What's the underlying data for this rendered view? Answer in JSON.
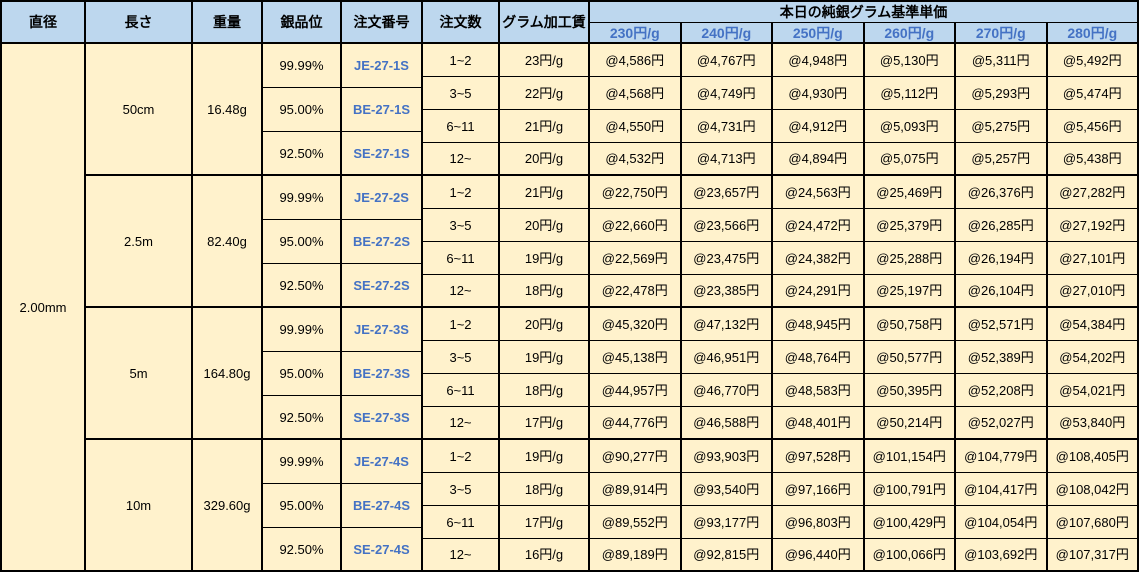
{
  "table": {
    "headers": {
      "diameter": "直径",
      "length": "長さ",
      "weight": "重量",
      "purity": "銀品位",
      "order_no": "注文番号",
      "qty": "注文数",
      "fee": "グラム加工賃",
      "price_group": "本日の純銀グラム基準単価",
      "price_cols": [
        "230円/g",
        "240円/g",
        "250円/g",
        "260円/g",
        "270円/g",
        "280円/g"
      ]
    },
    "diameter": "2.00mm",
    "blocks": [
      {
        "length": "50cm",
        "weight": "16.48g",
        "purities": [
          {
            "purity": "99.99%",
            "order_no": "JE-27-1S"
          },
          {
            "purity": "95.00%",
            "order_no": "BE-27-1S"
          },
          {
            "purity": "92.50%",
            "order_no": "SE-27-1S"
          }
        ],
        "rows": [
          {
            "qty": "1~2",
            "fee": "23円/g",
            "prices": [
              "@4,586円",
              "@4,767円",
              "@4,948円",
              "@5,130円",
              "@5,311円",
              "@5,492円"
            ]
          },
          {
            "qty": "3~5",
            "fee": "22円/g",
            "prices": [
              "@4,568円",
              "@4,749円",
              "@4,930円",
              "@5,112円",
              "@5,293円",
              "@5,474円"
            ]
          },
          {
            "qty": "6~11",
            "fee": "21円/g",
            "prices": [
              "@4,550円",
              "@4,731円",
              "@4,912円",
              "@5,093円",
              "@5,275円",
              "@5,456円"
            ]
          },
          {
            "qty": "12~",
            "fee": "20円/g",
            "prices": [
              "@4,532円",
              "@4,713円",
              "@4,894円",
              "@5,075円",
              "@5,257円",
              "@5,438円"
            ]
          }
        ]
      },
      {
        "length": "2.5m",
        "weight": "82.40g",
        "purities": [
          {
            "purity": "99.99%",
            "order_no": "JE-27-2S"
          },
          {
            "purity": "95.00%",
            "order_no": "BE-27-2S"
          },
          {
            "purity": "92.50%",
            "order_no": "SE-27-2S"
          }
        ],
        "rows": [
          {
            "qty": "1~2",
            "fee": "21円/g",
            "prices": [
              "@22,750円",
              "@23,657円",
              "@24,563円",
              "@25,469円",
              "@26,376円",
              "@27,282円"
            ]
          },
          {
            "qty": "3~5",
            "fee": "20円/g",
            "prices": [
              "@22,660円",
              "@23,566円",
              "@24,472円",
              "@25,379円",
              "@26,285円",
              "@27,192円"
            ]
          },
          {
            "qty": "6~11",
            "fee": "19円/g",
            "prices": [
              "@22,569円",
              "@23,475円",
              "@24,382円",
              "@25,288円",
              "@26,194円",
              "@27,101円"
            ]
          },
          {
            "qty": "12~",
            "fee": "18円/g",
            "prices": [
              "@22,478円",
              "@23,385円",
              "@24,291円",
              "@25,197円",
              "@26,104円",
              "@27,010円"
            ]
          }
        ]
      },
      {
        "length": "5m",
        "weight": "164.80g",
        "purities": [
          {
            "purity": "99.99%",
            "order_no": "JE-27-3S"
          },
          {
            "purity": "95.00%",
            "order_no": "BE-27-3S"
          },
          {
            "purity": "92.50%",
            "order_no": "SE-27-3S"
          }
        ],
        "rows": [
          {
            "qty": "1~2",
            "fee": "20円/g",
            "prices": [
              "@45,320円",
              "@47,132円",
              "@48,945円",
              "@50,758円",
              "@52,571円",
              "@54,384円"
            ]
          },
          {
            "qty": "3~5",
            "fee": "19円/g",
            "prices": [
              "@45,138円",
              "@46,951円",
              "@48,764円",
              "@50,577円",
              "@52,389円",
              "@54,202円"
            ]
          },
          {
            "qty": "6~11",
            "fee": "18円/g",
            "prices": [
              "@44,957円",
              "@46,770円",
              "@48,583円",
              "@50,395円",
              "@52,208円",
              "@54,021円"
            ]
          },
          {
            "qty": "12~",
            "fee": "17円/g",
            "prices": [
              "@44,776円",
              "@46,588円",
              "@48,401円",
              "@50,214円",
              "@52,027円",
              "@53,840円"
            ]
          }
        ]
      },
      {
        "length": "10m",
        "weight": "329.60g",
        "purities": [
          {
            "purity": "99.99%",
            "order_no": "JE-27-4S"
          },
          {
            "purity": "95.00%",
            "order_no": "BE-27-4S"
          },
          {
            "purity": "92.50%",
            "order_no": "SE-27-4S"
          }
        ],
        "rows": [
          {
            "qty": "1~2",
            "fee": "19円/g",
            "prices": [
              "@90,277円",
              "@93,903円",
              "@97,528円",
              "@101,154円",
              "@104,779円",
              "@108,405円"
            ]
          },
          {
            "qty": "3~5",
            "fee": "18円/g",
            "prices": [
              "@89,914円",
              "@93,540円",
              "@97,166円",
              "@100,791円",
              "@104,417円",
              "@108,042円"
            ]
          },
          {
            "qty": "6~11",
            "fee": "17円/g",
            "prices": [
              "@89,552円",
              "@93,177円",
              "@96,803円",
              "@100,429円",
              "@104,054円",
              "@107,680円"
            ]
          },
          {
            "qty": "12~",
            "fee": "16円/g",
            "prices": [
              "@89,189円",
              "@92,815円",
              "@96,440円",
              "@100,066円",
              "@103,692円",
              "@107,317円"
            ]
          }
        ]
      }
    ]
  },
  "colors": {
    "header_bg": "#BDD7EE",
    "cell_bg": "#FFF2CC",
    "accent_blue_text": "#4472C4",
    "border": "#000000"
  }
}
